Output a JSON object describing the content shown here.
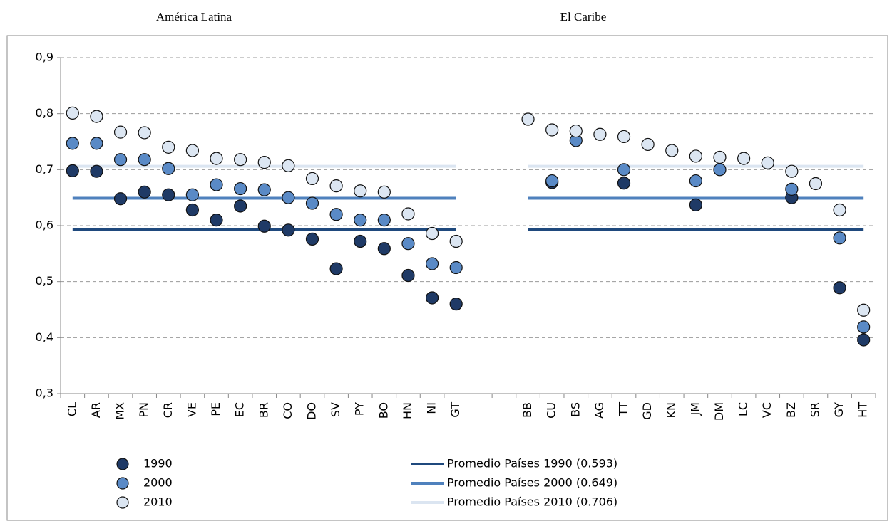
{
  "chart_data": {
    "type": "dot",
    "group_labels": [
      "América Latina",
      "El Caribe"
    ],
    "categories": [
      "CL",
      "AR",
      "MX",
      "PN",
      "CR",
      "VE",
      "PE",
      "EC",
      "BR",
      "CO",
      "DO",
      "SV",
      "PY",
      "BO",
      "HN",
      "NI",
      "GT",
      null,
      null,
      "BB",
      "CU",
      "BS",
      "AG",
      "TT",
      "GD",
      "KN",
      "JM",
      "DM",
      "LC",
      "VC",
      "BZ",
      "SR",
      "GY",
      "HT"
    ],
    "series": [
      {
        "name": "1990",
        "color": "#1f3a66",
        "values": [
          0.698,
          0.697,
          0.648,
          0.66,
          0.655,
          0.628,
          0.61,
          0.635,
          0.599,
          0.592,
          0.576,
          0.523,
          0.572,
          0.559,
          0.511,
          0.471,
          0.46,
          null,
          null,
          null,
          0.677,
          null,
          null,
          0.676,
          null,
          null,
          0.637,
          null,
          null,
          null,
          0.65,
          null,
          0.489,
          0.396
        ]
      },
      {
        "name": "2000",
        "color": "#5a8ac6",
        "values": [
          0.747,
          0.747,
          0.718,
          0.718,
          0.702,
          0.655,
          0.673,
          0.666,
          0.664,
          0.65,
          0.64,
          0.62,
          0.61,
          0.61,
          0.568,
          0.532,
          0.525,
          null,
          null,
          null,
          0.68,
          0.752,
          null,
          0.7,
          null,
          null,
          0.68,
          0.7,
          null,
          null,
          0.665,
          null,
          0.578,
          0.419
        ]
      },
      {
        "name": "2010",
        "color": "#dce6f2",
        "values": [
          0.801,
          0.795,
          0.767,
          0.766,
          0.74,
          0.734,
          0.72,
          0.718,
          0.713,
          0.707,
          0.684,
          0.671,
          0.662,
          0.66,
          0.621,
          0.586,
          0.572,
          null,
          null,
          0.79,
          0.771,
          0.769,
          0.763,
          0.759,
          0.745,
          0.734,
          0.724,
          0.722,
          0.72,
          0.712,
          0.697,
          0.675,
          0.628,
          0.449
        ]
      }
    ],
    "averages": [
      {
        "name": "Promedio Países 1990 (0.593)",
        "value": 0.593,
        "color": "#1f497d"
      },
      {
        "name": "Promedio Países 2000 (0.649)",
        "value": 0.649,
        "color": "#4f81bd"
      },
      {
        "name": "Promedio Países 2010 (0.706)",
        "value": 0.706,
        "color": "#dbe5f1"
      }
    ],
    "ylim": [
      0.3,
      0.9
    ],
    "yticks": [
      {
        "value": 0.3,
        "label": "0,3"
      },
      {
        "value": 0.4,
        "label": "0,4"
      },
      {
        "value": 0.5,
        "label": "0,5"
      },
      {
        "value": 0.6,
        "label": "0,6"
      },
      {
        "value": 0.7,
        "label": "0,7"
      },
      {
        "value": 0.8,
        "label": "0,8"
      },
      {
        "value": 0.9,
        "label": "0,9"
      }
    ],
    "grid": true
  }
}
